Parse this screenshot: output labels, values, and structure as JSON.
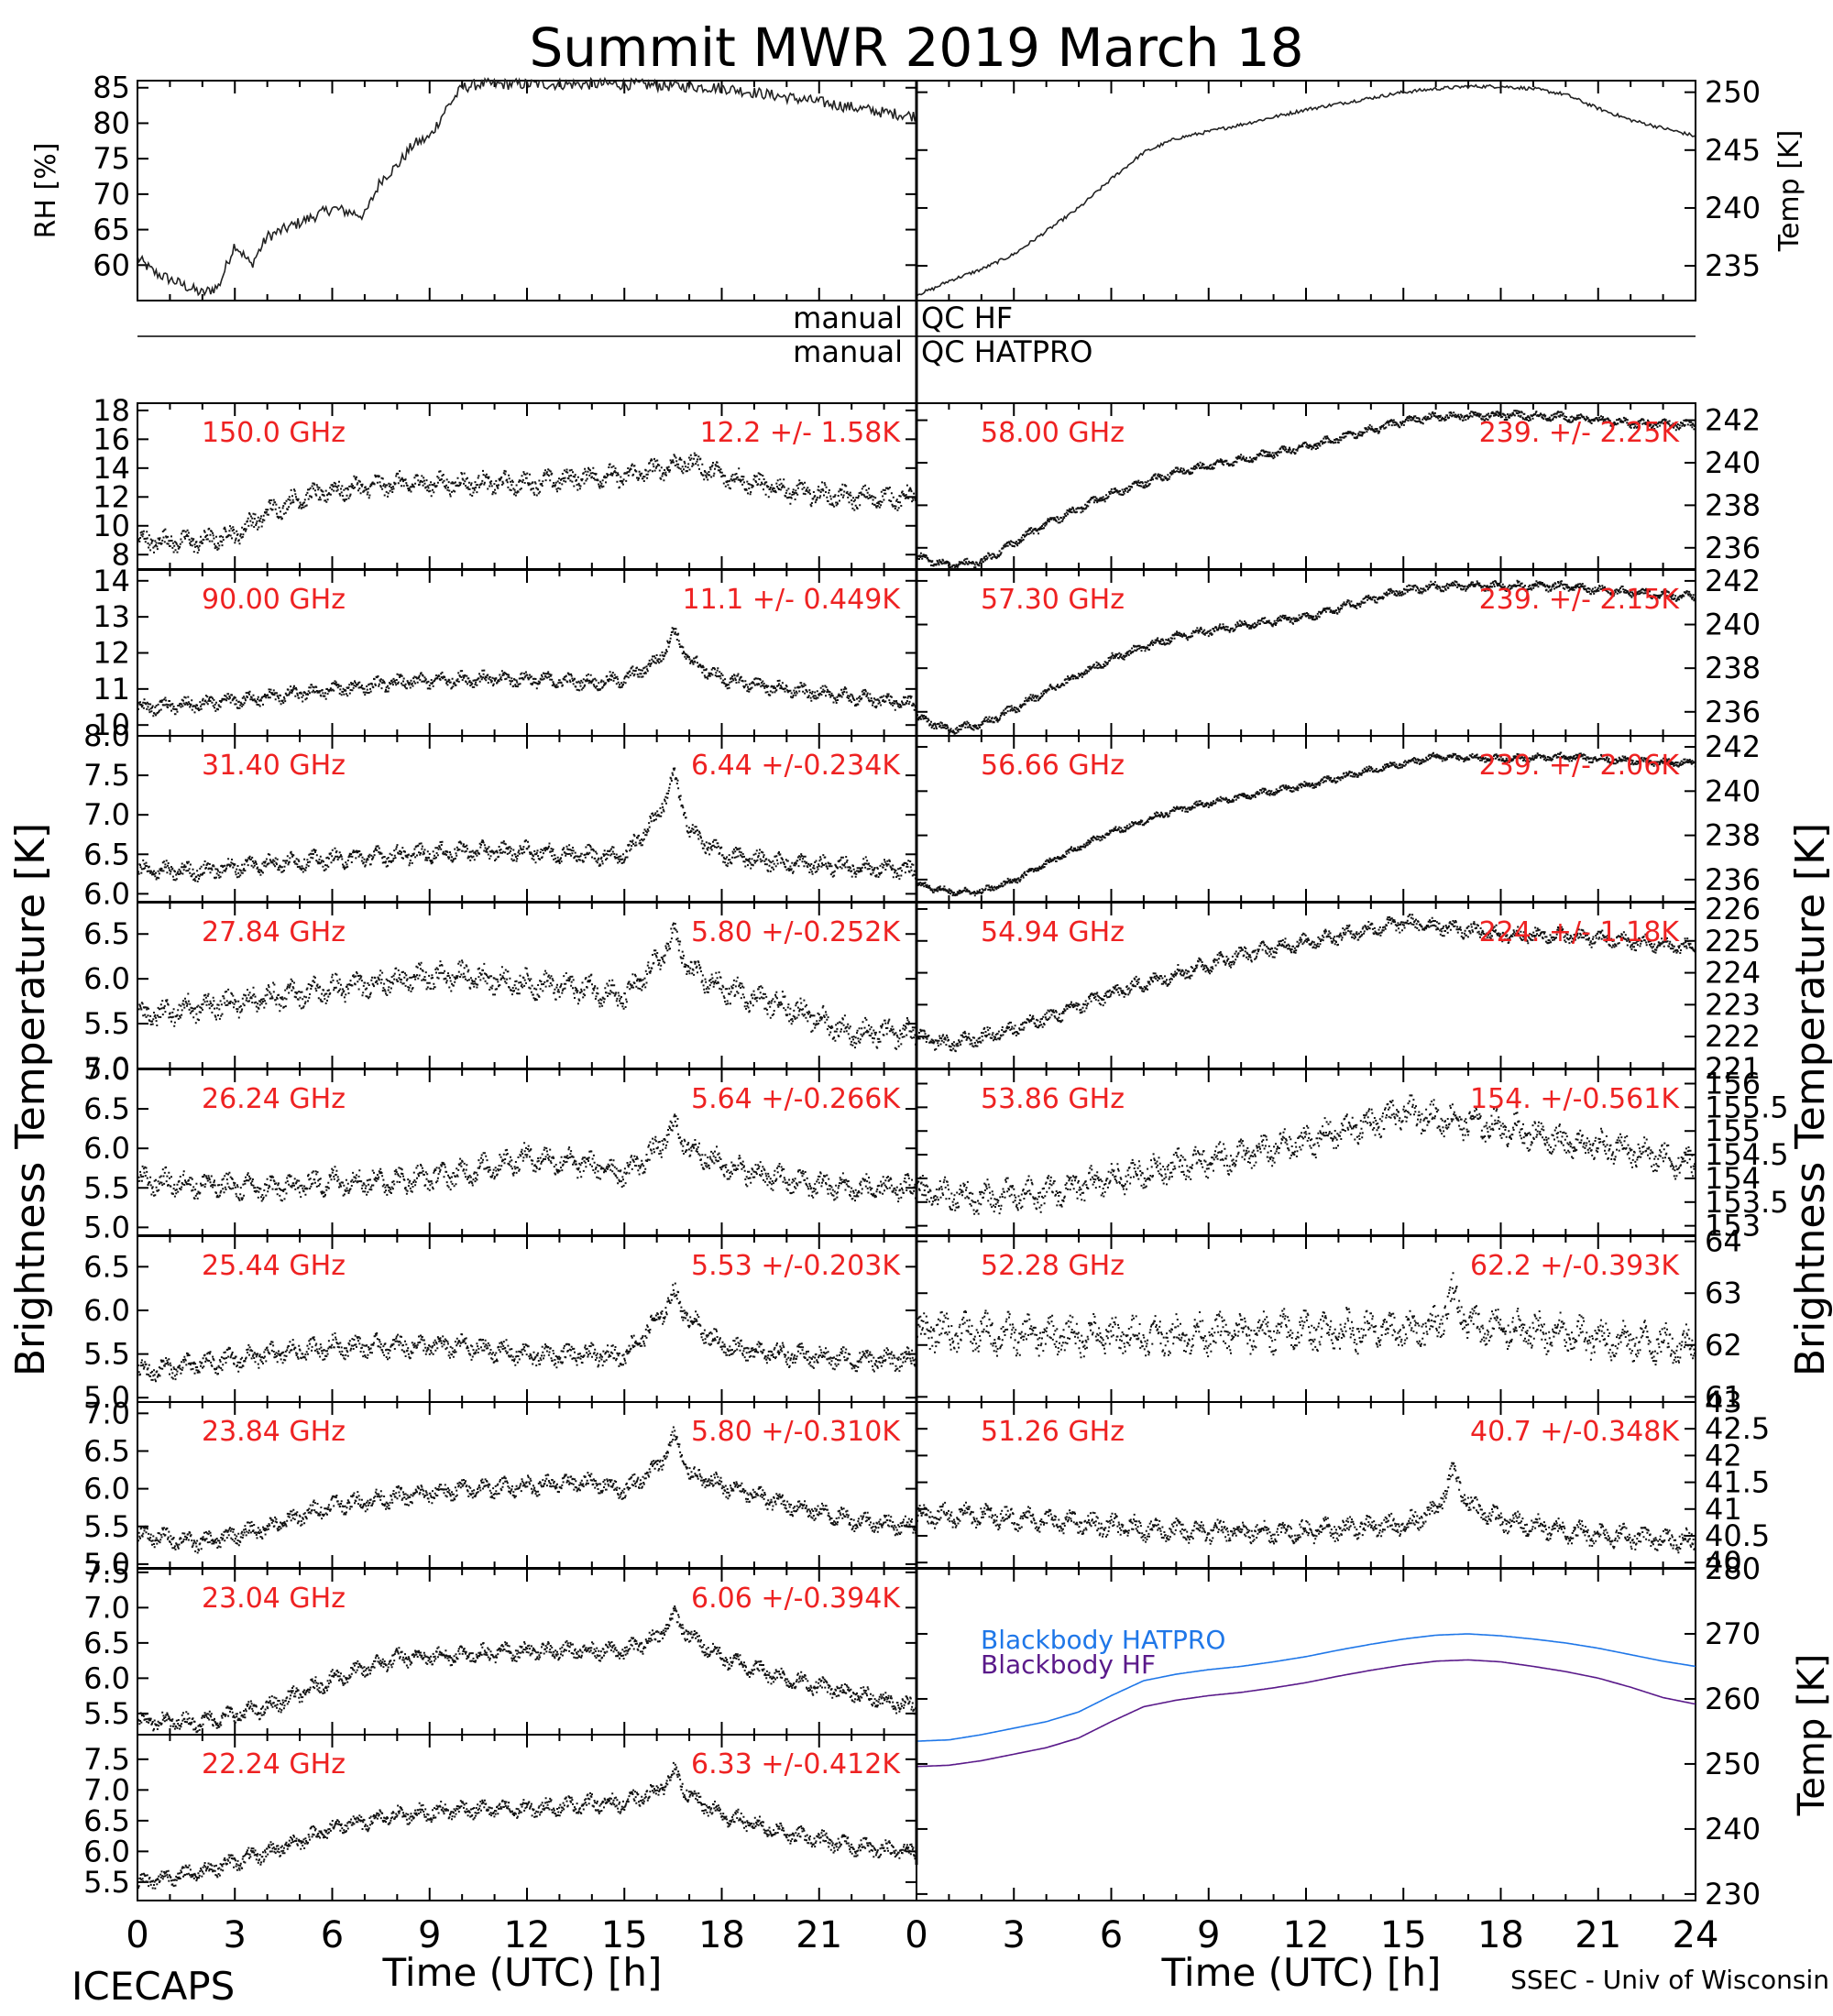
{
  "figure": {
    "title": "Summit MWR 2019 March 18",
    "footer_left": "ICECAPS",
    "footer_right": "SSEC - Univ of Wisconsin",
    "xlabel": "Time (UTC) [h]",
    "ylabel_left": "Brightness Temperature [K]",
    "ylabel_right": "Brightness Temperature [K]",
    "qc_left": [
      "manual",
      "manual"
    ],
    "qc_right": [
      "QC HF",
      "QC HATPRO"
    ],
    "x_ticks": [
      "0",
      "3",
      "6",
      "9",
      "12",
      "15",
      "18",
      "21"
    ],
    "x_ticks_right": [
      "0",
      "3",
      "6",
      "9",
      "12",
      "15",
      "18",
      "21",
      "24"
    ]
  },
  "chart_data": [
    {
      "id": "rh",
      "type": "line",
      "ylabel": "RH [%]",
      "xlim": [
        0,
        24
      ],
      "ylim": [
        55,
        86
      ],
      "yticks": [
        "60",
        "65",
        "70",
        "75",
        "80",
        "85"
      ],
      "x": [
        0,
        0.5,
        1,
        1.5,
        2,
        2.5,
        3,
        3.5,
        4,
        5,
        6,
        7,
        7.5,
        8,
        8.5,
        9,
        9.5,
        10,
        10.5,
        12,
        15,
        18,
        21,
        23,
        24
      ],
      "values": [
        61,
        59,
        58,
        57,
        56,
        57,
        63,
        60,
        64,
        66,
        68,
        67,
        72,
        74,
        77,
        78,
        82,
        85,
        85.5,
        85.5,
        85.5,
        85,
        83,
        81.5,
        81
      ]
    },
    {
      "id": "temp",
      "type": "line",
      "ylabel": "Temp [K]",
      "xlim": [
        0,
        24
      ],
      "ylim": [
        232,
        251
      ],
      "yticks": [
        "235",
        "240",
        "245",
        "250"
      ],
      "x": [
        0,
        0.5,
        1,
        2,
        3,
        4,
        5,
        6,
        7,
        8,
        10,
        12,
        14,
        15,
        16,
        17,
        18,
        19,
        20,
        21,
        22,
        23,
        24
      ],
      "values": [
        232.5,
        233,
        233.7,
        234.7,
        236,
        238,
        240,
        242.5,
        244.8,
        246,
        247.2,
        248.5,
        249.5,
        250,
        250.3,
        250.5,
        250.5,
        250.3,
        249.8,
        248.6,
        247.6,
        246.9,
        246.2
      ]
    },
    {
      "id": "c150",
      "type": "scatter",
      "label": "150.0 GHz",
      "stats": "12.2 +/-  1.58K",
      "ylim": [
        7,
        18.5
      ],
      "yticks": [
        "8",
        "10",
        "12",
        "14",
        "16",
        "18"
      ],
      "x": [
        0,
        2,
        3,
        4,
        5,
        6,
        8,
        10,
        12,
        14,
        15,
        16,
        17,
        18,
        20,
        22,
        24
      ],
      "values": [
        9,
        9,
        9.5,
        11,
        12,
        12.5,
        13,
        13,
        13,
        13.5,
        13.5,
        14,
        14.5,
        13.5,
        12.5,
        12,
        12
      ],
      "noise": 0.9
    },
    {
      "id": "c90",
      "type": "scatter",
      "label": "90.00 GHz",
      "stats": "11.1 +/- 0.449K",
      "ylim": [
        9.7,
        14.3
      ],
      "yticks": [
        "10",
        "11",
        "12",
        "13",
        "14"
      ],
      "x": [
        0,
        2,
        4,
        6,
        8,
        10,
        12,
        14,
        15,
        16,
        16.5,
        17,
        18,
        20,
        22,
        24
      ],
      "values": [
        10.5,
        10.6,
        10.8,
        11,
        11.2,
        11.3,
        11.3,
        11.2,
        11.3,
        11.8,
        12.6,
        11.8,
        11.3,
        11,
        10.8,
        10.6
      ],
      "noise": 0.25
    },
    {
      "id": "c31",
      "type": "scatter",
      "label": "31.40 GHz",
      "stats": "6.44 +/-0.234K",
      "ylim": [
        5.9,
        8
      ],
      "yticks": [
        "6.0",
        "6.5",
        "7.0",
        "7.5",
        "8.0"
      ],
      "x": [
        0,
        2,
        4,
        6,
        8,
        10,
        12,
        14,
        15,
        16,
        16.5,
        17,
        18,
        20,
        22,
        24
      ],
      "values": [
        6.3,
        6.3,
        6.4,
        6.45,
        6.5,
        6.55,
        6.55,
        6.5,
        6.5,
        7,
        7.5,
        6.8,
        6.5,
        6.4,
        6.35,
        6.3
      ],
      "noise": 0.14
    },
    {
      "id": "c27",
      "type": "scatter",
      "label": "27.84 GHz",
      "stats": "5.80 +/-0.252K",
      "ylim": [
        5,
        6.85
      ],
      "yticks": [
        "5.0",
        "5.5",
        "6.0",
        "6.5"
      ],
      "x": [
        0,
        2,
        4,
        6,
        8,
        10,
        12,
        14,
        15,
        16,
        16.5,
        17,
        18,
        20,
        22,
        24
      ],
      "values": [
        5.6,
        5.7,
        5.8,
        5.9,
        6,
        6.05,
        5.95,
        5.9,
        5.8,
        6.2,
        6.5,
        6.1,
        5.9,
        5.7,
        5.4,
        5.4
      ],
      "noise": 0.18
    },
    {
      "id": "c26",
      "type": "scatter",
      "label": "26.24 GHz",
      "stats": "5.64 +/-0.266K",
      "ylim": [
        4.9,
        7
      ],
      "yticks": [
        "5.0",
        "5.5",
        "6.0",
        "6.5",
        "7.0"
      ],
      "x": [
        0,
        2,
        4,
        6,
        8,
        10,
        12,
        14,
        15,
        16,
        16.5,
        17,
        18,
        20,
        22,
        24
      ],
      "values": [
        5.6,
        5.55,
        5.5,
        5.6,
        5.6,
        5.7,
        5.9,
        5.8,
        5.7,
        6,
        6.3,
        6,
        5.8,
        5.6,
        5.5,
        5.5
      ],
      "noise": 0.2
    },
    {
      "id": "c25",
      "type": "scatter",
      "label": "25.44 GHz",
      "stats": "5.53 +/-0.203K",
      "ylim": [
        4.95,
        6.85
      ],
      "yticks": [
        "5.0",
        "5.5",
        "6.0",
        "6.5"
      ],
      "x": [
        0,
        2,
        4,
        6,
        8,
        10,
        12,
        14,
        15,
        16,
        16.5,
        17,
        18,
        20,
        22,
        24
      ],
      "values": [
        5.3,
        5.4,
        5.5,
        5.6,
        5.6,
        5.6,
        5.5,
        5.5,
        5.5,
        5.9,
        6.2,
        5.9,
        5.6,
        5.5,
        5.45,
        5.45
      ],
      "noise": 0.15
    },
    {
      "id": "c23b",
      "type": "scatter",
      "label": "23.84 GHz",
      "stats": "5.80 +/-0.310K",
      "ylim": [
        4.95,
        7.15
      ],
      "yticks": [
        "5.0",
        "5.5",
        "6.0",
        "6.5",
        "7.0"
      ],
      "x": [
        0,
        2,
        4,
        6,
        8,
        10,
        12,
        14,
        15,
        16,
        16.5,
        17,
        18,
        20,
        22,
        24
      ],
      "values": [
        5.4,
        5.3,
        5.5,
        5.8,
        5.9,
        6,
        6.05,
        6.1,
        6,
        6.3,
        6.7,
        6.2,
        6.05,
        5.8,
        5.6,
        5.5
      ],
      "noise": 0.15
    },
    {
      "id": "c23a",
      "type": "scatter",
      "label": "23.04 GHz",
      "stats": "6.06 +/-0.394K",
      "ylim": [
        5.2,
        7.55
      ],
      "yticks": [
        "5.5",
        "6.0",
        "6.5",
        "7.0",
        "7.5"
      ],
      "x": [
        0,
        2,
        4,
        6,
        8,
        10,
        12,
        14,
        15,
        16,
        16.5,
        17,
        18,
        20,
        22,
        24
      ],
      "values": [
        5.4,
        5.4,
        5.6,
        6,
        6.3,
        6.35,
        6.4,
        6.4,
        6.4,
        6.6,
        6.9,
        6.6,
        6.3,
        6,
        5.8,
        5.6
      ],
      "noise": 0.15
    },
    {
      "id": "c22",
      "type": "scatter",
      "label": "22.24 GHz",
      "stats": "6.33 +/-0.412K",
      "ylim": [
        5.2,
        7.9
      ],
      "yticks": [
        "5.5",
        "6.0",
        "6.5",
        "7.0",
        "7.5"
      ],
      "x": [
        0,
        2,
        4,
        6,
        8,
        10,
        12,
        14,
        15,
        16,
        16.5,
        17,
        18,
        20,
        22,
        24
      ],
      "values": [
        5.5,
        5.7,
        6,
        6.4,
        6.6,
        6.7,
        6.7,
        6.8,
        6.8,
        7,
        7.3,
        6.9,
        6.6,
        6.3,
        6.1,
        6
      ],
      "noise": 0.17
    },
    {
      "id": "c58",
      "type": "scatter",
      "label": "58.00 GHz",
      "stats": "239. +/- 2.25K",
      "ylim": [
        235,
        242.8
      ],
      "yticks": [
        "236",
        "238",
        "240",
        "242"
      ],
      "x": [
        0,
        1,
        2,
        3,
        4,
        6,
        8,
        10,
        12,
        14,
        15,
        16,
        18,
        20,
        22,
        24
      ],
      "values": [
        235.6,
        235.2,
        235.4,
        236.3,
        237.2,
        238.6,
        239.6,
        240.2,
        240.8,
        241.6,
        242,
        242.2,
        242.3,
        242.2,
        241.9,
        241.8
      ],
      "noise": 0.25
    },
    {
      "id": "c57",
      "type": "scatter",
      "label": "57.30 GHz",
      "stats": "239. +/- 2.15K",
      "ylim": [
        234.9,
        242.5
      ],
      "yticks": [
        "236",
        "238",
        "240",
        "242"
      ],
      "x": [
        0,
        1,
        2,
        3,
        4,
        6,
        8,
        10,
        12,
        14,
        15,
        16,
        18,
        20,
        22,
        24
      ],
      "values": [
        235.8,
        235.2,
        235.5,
        236.2,
        237,
        238.5,
        239.5,
        240,
        240.4,
        241.2,
        241.6,
        241.8,
        241.8,
        241.8,
        241.5,
        241.3
      ],
      "noise": 0.25
    },
    {
      "id": "c56",
      "type": "scatter",
      "label": "56.66 GHz",
      "stats": "239. +/- 2.06K",
      "ylim": [
        235,
        242.5
      ],
      "yticks": [
        "236",
        "238",
        "240",
        "242"
      ],
      "x": [
        0,
        1,
        2,
        3,
        4,
        6,
        8,
        10,
        12,
        14,
        15,
        16,
        18,
        20,
        22,
        24
      ],
      "values": [
        235.8,
        235.5,
        235.5,
        236,
        236.8,
        238.2,
        239.2,
        239.8,
        240.3,
        241,
        241.3,
        241.6,
        241.5,
        241.6,
        241.4,
        241.3
      ],
      "noise": 0.2
    },
    {
      "id": "c54",
      "type": "scatter",
      "label": "54.94 GHz",
      "stats": "224. +/- 1.18K",
      "ylim": [
        221,
        226.2
      ],
      "yticks": [
        "221",
        "222",
        "223",
        "224",
        "225",
        "226"
      ],
      "x": [
        0,
        1,
        2,
        4,
        6,
        8,
        10,
        12,
        14,
        15,
        16,
        18,
        20,
        22,
        24
      ],
      "values": [
        222,
        221.8,
        222,
        222.6,
        223.4,
        224,
        224.6,
        225,
        225.4,
        225.6,
        225.5,
        225.2,
        225.2,
        225,
        224.8
      ],
      "noise": 0.3
    },
    {
      "id": "c53",
      "type": "scatter",
      "label": "53.86 GHz",
      "stats": "154. +/-0.561K",
      "ylim": [
        152.8,
        156.3
      ],
      "yticks": [
        "153",
        "153.5",
        "154",
        "154.5",
        "155",
        "155.5",
        "156"
      ],
      "x": [
        0,
        2,
        4,
        6,
        8,
        10,
        12,
        14,
        15,
        16,
        18,
        20,
        22,
        24
      ],
      "values": [
        153.7,
        153.6,
        153.7,
        154,
        154.3,
        154.5,
        154.8,
        155.2,
        155.4,
        155.3,
        155.1,
        154.8,
        154.6,
        154.3
      ],
      "noise": 0.4
    },
    {
      "id": "c52",
      "type": "scatter",
      "label": "52.28 GHz",
      "stats": "62.2 +/-0.393K",
      "ylim": [
        60.9,
        64.1
      ],
      "yticks": [
        "61",
        "62",
        "63",
        "64"
      ],
      "x": [
        0,
        4,
        8,
        12,
        15,
        16,
        16.5,
        17,
        20,
        24
      ],
      "values": [
        62.3,
        62.2,
        62.2,
        62.3,
        62.3,
        62.4,
        63,
        62.4,
        62.2,
        62
      ],
      "noise": 0.45
    },
    {
      "id": "c51",
      "type": "scatter",
      "label": "51.26 GHz",
      "stats": "40.7 +/-0.348K",
      "ylim": [
        39.9,
        43
      ],
      "yticks": [
        "40",
        "40.5",
        "41",
        "41.5",
        "42",
        "42.5",
        "43"
      ],
      "x": [
        0,
        2,
        4,
        6,
        8,
        10,
        12,
        14,
        15,
        16,
        16.5,
        17,
        18,
        20,
        22,
        24
      ],
      "values": [
        40.9,
        40.9,
        40.8,
        40.7,
        40.6,
        40.6,
        40.6,
        40.7,
        40.7,
        41,
        41.7,
        41.1,
        40.8,
        40.6,
        40.5,
        40.4
      ],
      "noise": 0.25
    },
    {
      "id": "bb",
      "type": "line",
      "ylabel": "Temp [K]",
      "ylim": [
        229,
        280
      ],
      "yticks": [
        "230",
        "240",
        "250",
        "260",
        "270",
        "280"
      ],
      "series": [
        {
          "name": "Blackbody HATPRO",
          "color": "#1f77e8",
          "x": [
            0,
            1,
            2,
            3,
            4,
            5,
            6,
            7,
            8,
            9,
            10,
            11,
            12,
            13,
            14,
            15,
            16,
            17,
            18,
            19,
            20,
            21,
            22,
            23,
            24
          ],
          "values": [
            253.5,
            253.7,
            254.5,
            255.5,
            256.5,
            258,
            260.5,
            262.8,
            263.8,
            264.5,
            265,
            265.7,
            266.5,
            267.5,
            268.4,
            269.2,
            269.8,
            270,
            269.7,
            269.2,
            268.6,
            267.8,
            266.8,
            265.8,
            265
          ]
        },
        {
          "name": "Blackbody HF",
          "color": "#5a1a8a",
          "x": [
            0,
            1,
            2,
            3,
            4,
            5,
            6,
            7,
            8,
            9,
            10,
            11,
            12,
            13,
            14,
            15,
            16,
            17,
            18,
            19,
            20,
            21,
            22,
            23,
            24
          ],
          "values": [
            249.6,
            249.8,
            250.5,
            251.5,
            252.5,
            254,
            256.5,
            258.8,
            259.8,
            260.5,
            261,
            261.7,
            262.5,
            263.5,
            264.4,
            265.2,
            265.8,
            266.0,
            265.7,
            265.0,
            264.2,
            263.2,
            261.8,
            260.2,
            259.2
          ]
        }
      ]
    }
  ]
}
